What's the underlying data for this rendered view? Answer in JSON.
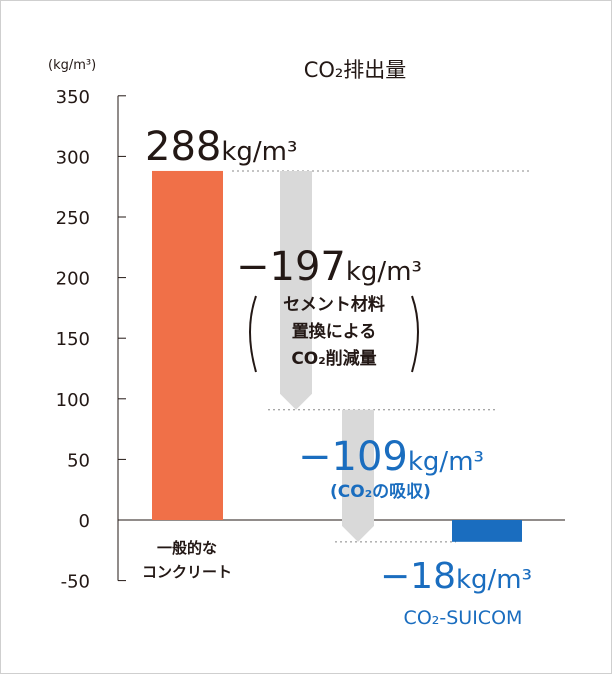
{
  "chart_data": {
    "type": "bar",
    "title": "CO₂排出量",
    "ylabel": "(kg/m³)",
    "ylim": [
      -50,
      350
    ],
    "yticks": [
      350,
      300,
      250,
      200,
      150,
      100,
      50,
      0,
      -50
    ],
    "grid": false,
    "bars": [
      {
        "id": "conventional",
        "category": "一般的なコンクリート",
        "value": 288,
        "color": "#f07048",
        "label": "288kg/m³",
        "label_color": "#231815"
      },
      {
        "id": "suicom",
        "category": "CO₂-SUICOM",
        "value": -18,
        "color": "#1a6dbf",
        "label": "−18kg/m³",
        "label_color": "#1a6dbf"
      }
    ],
    "reductions": [
      {
        "id": "cement",
        "from": 288,
        "to": 91,
        "value": -197,
        "label": "−197kg/m³",
        "note": [
          "セメント材料",
          "置換による",
          "CO₂削減量"
        ],
        "color": "#231815"
      },
      {
        "id": "absorption",
        "from": 91,
        "to": -18,
        "value": -109,
        "label": "−109kg/m³",
        "note": [
          "(CO₂の吸収)"
        ],
        "color": "#1a6dbf"
      }
    ],
    "category_labels": {
      "conventional": [
        "一般的な",
        "コンクリート"
      ],
      "suicom": [
        "CO₂-SUICOM"
      ]
    }
  }
}
